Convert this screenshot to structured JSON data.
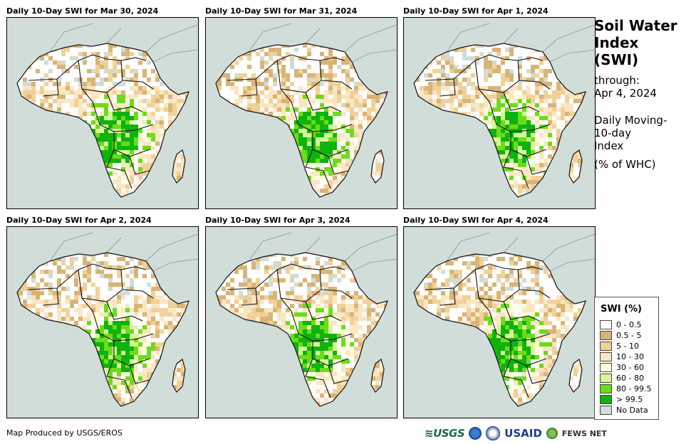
{
  "panels": [
    {
      "title": "Daily 10-Day SWI for Mar 30, 2024"
    },
    {
      "title": "Daily 10-Day SWI for Mar 31, 2024"
    },
    {
      "title": "Daily 10-Day SWI for Apr 1, 2024"
    },
    {
      "title": "Daily 10-Day SWI for Apr 2, 2024"
    },
    {
      "title": "Daily 10-Day SWI for Apr 3, 2024"
    },
    {
      "title": "Daily 10-Day SWI for Apr 4, 2024"
    }
  ],
  "side": {
    "title_line1": "Soil Water",
    "title_line2": "Index",
    "title_line3": "(SWI)",
    "through_label": "through:",
    "through_date": "Apr 4, 2024",
    "desc_line1": "Daily Moving-",
    "desc_line2": "10-day",
    "desc_line3": "Index",
    "units": "(% of WHC)"
  },
  "legend": {
    "title": "SWI (%)",
    "items": [
      {
        "label": "0 - 0.5",
        "color": "#ffffff"
      },
      {
        "label": "0.5 - 5",
        "color": "#d9b477"
      },
      {
        "label": "5 - 10",
        "color": "#f1d19a"
      },
      {
        "label": "10 - 30",
        "color": "#fbe6c4"
      },
      {
        "label": "30 - 60",
        "color": "#fdfdd9"
      },
      {
        "label": "60 - 80",
        "color": "#d7f59a"
      },
      {
        "label": "80 - 99.5",
        "color": "#6cdc1a"
      },
      {
        "label": "> 99.5",
        "color": "#0eb30e"
      },
      {
        "label": "No Data",
        "color": "#d0ddd9"
      }
    ]
  },
  "footer": {
    "credit": "Map Produced by USGS/EROS",
    "logo_usgs": "≋USGS",
    "logo_usaid": "USAID",
    "logo_fews": "FEWS NET"
  }
}
